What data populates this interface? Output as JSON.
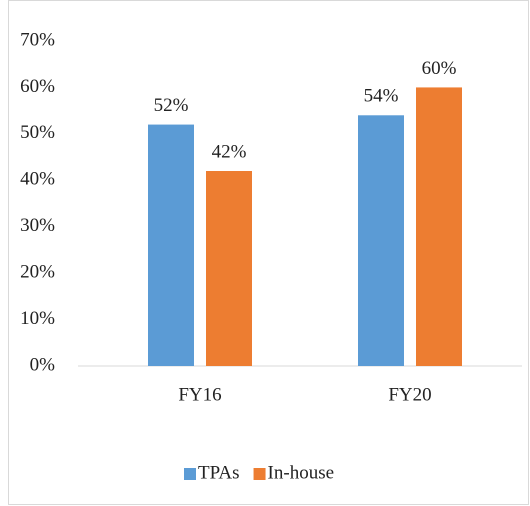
{
  "chart_data": {
    "type": "bar",
    "categories": [
      "FY16",
      "FY20"
    ],
    "series": [
      {
        "name": "TPAs",
        "color": "#5b9bd5",
        "values": [
          52,
          54
        ],
        "value_labels": [
          "52%",
          "54%"
        ]
      },
      {
        "name": "In-house",
        "color": "#ed7d31",
        "values": [
          42,
          60
        ],
        "value_labels": [
          "42%",
          "60%"
        ]
      }
    ],
    "ylim": [
      0,
      70
    ],
    "yticks": [
      {
        "value": 0,
        "label": "0%"
      },
      {
        "value": 10,
        "label": "10%"
      },
      {
        "value": 20,
        "label": "20%"
      },
      {
        "value": 30,
        "label": "30%"
      },
      {
        "value": 40,
        "label": "40%"
      },
      {
        "value": 50,
        "label": "50%"
      },
      {
        "value": 60,
        "label": "60%"
      },
      {
        "value": 70,
        "label": "70%"
      }
    ],
    "grid": false,
    "legend": "bottom"
  }
}
